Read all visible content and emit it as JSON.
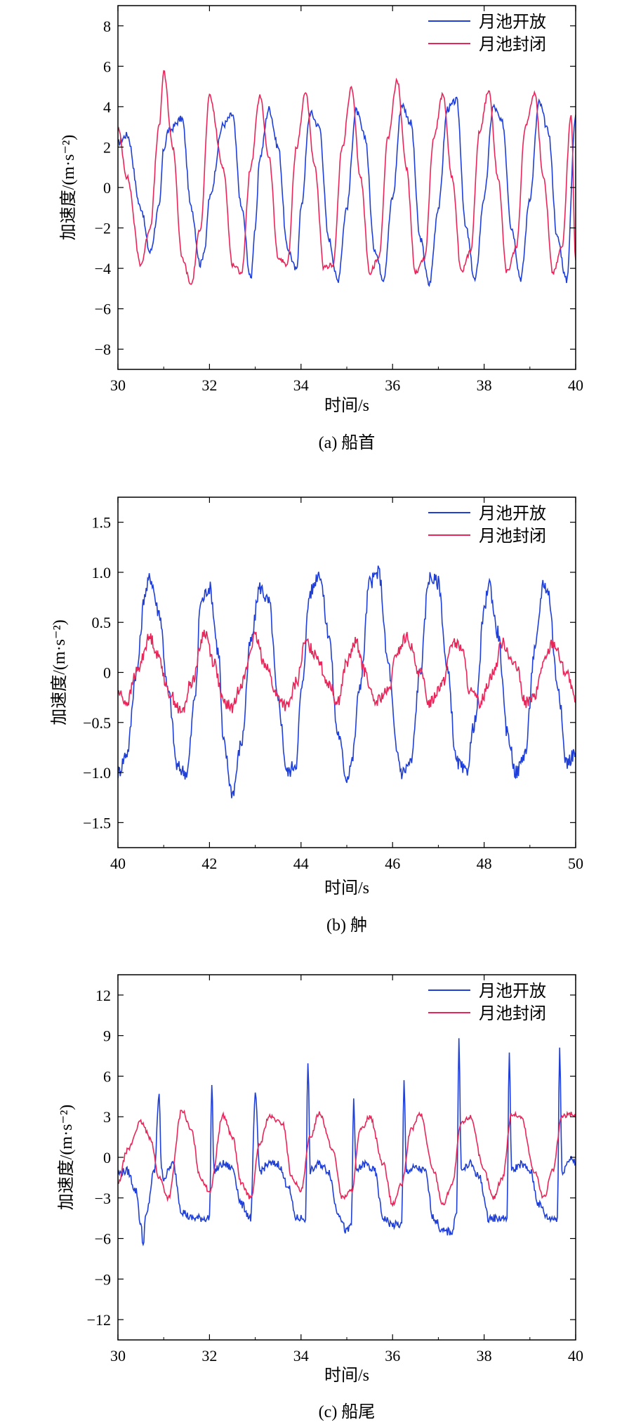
{
  "chart_data": [
    {
      "type": "line",
      "caption": "(a) 船首",
      "xlabel": "时间/s",
      "ylabel": "加速度/(m·s⁻²)",
      "xlim": [
        30,
        40
      ],
      "ylim": [
        -9,
        9
      ],
      "xticks": [
        30,
        32,
        34,
        36,
        38,
        40
      ],
      "yticks": [
        -8,
        -6,
        -4,
        -2,
        0,
        2,
        4,
        6,
        8
      ],
      "ytick_labels": [
        "−8",
        "−6",
        "−4",
        "−2",
        "0",
        "2",
        "4",
        "6",
        "8"
      ],
      "legend_position": "top-right",
      "grid": false,
      "series": [
        {
          "name": "月池开放",
          "color": "#1f3fd6",
          "x": [
            30.0,
            30.2,
            30.5,
            30.7,
            30.9,
            31.0,
            31.1,
            31.4,
            31.6,
            31.8,
            31.9,
            32.0,
            32.3,
            32.5,
            32.7,
            32.9,
            33.0,
            33.1,
            33.3,
            33.5,
            33.7,
            33.9,
            34.0,
            34.2,
            34.4,
            34.6,
            34.8,
            35.0,
            35.2,
            35.4,
            35.6,
            35.8,
            36.0,
            36.2,
            36.4,
            36.6,
            36.8,
            37.0,
            37.2,
            37.4,
            37.6,
            37.8,
            38.0,
            38.2,
            38.4,
            38.6,
            38.8,
            39.0,
            39.2,
            39.4,
            39.6,
            39.8,
            40.0
          ],
          "values": [
            2.2,
            2.6,
            -1.0,
            -3.2,
            -1.0,
            1.9,
            2.8,
            3.4,
            -1.0,
            -3.8,
            -3.0,
            -0.5,
            3.1,
            3.6,
            -1.0,
            -4.5,
            -2.0,
            1.5,
            3.9,
            2.0,
            -3.0,
            -4.1,
            -1.0,
            3.7,
            3.0,
            -2.5,
            -4.6,
            -1.0,
            3.8,
            2.5,
            -3.0,
            -4.5,
            -0.5,
            4.1,
            3.2,
            -2.5,
            -4.8,
            -1.0,
            3.9,
            4.3,
            -2.0,
            -4.6,
            -0.5,
            4.0,
            3.2,
            -2.0,
            -4.5,
            -0.5,
            4.2,
            2.8,
            -2.5,
            -4.6,
            3.6
          ]
        },
        {
          "name": "月池封闭",
          "color": "#e8265a",
          "x": [
            30.0,
            30.2,
            30.5,
            30.7,
            30.9,
            31.0,
            31.2,
            31.4,
            31.6,
            31.8,
            32.0,
            32.3,
            32.5,
            32.7,
            32.9,
            33.1,
            33.3,
            33.5,
            33.7,
            33.9,
            34.1,
            34.3,
            34.5,
            34.7,
            34.9,
            35.1,
            35.3,
            35.5,
            35.7,
            35.9,
            36.1,
            36.3,
            36.5,
            36.7,
            36.9,
            37.1,
            37.3,
            37.5,
            37.7,
            37.9,
            38.1,
            38.3,
            38.5,
            38.7,
            38.9,
            39.1,
            39.3,
            39.5,
            39.7,
            39.9,
            40.0
          ],
          "values": [
            2.9,
            0.5,
            -3.8,
            -2.0,
            3.0,
            5.7,
            2.0,
            -3.5,
            -4.8,
            -2.0,
            4.5,
            1.0,
            -3.8,
            -4.2,
            1.0,
            4.5,
            1.5,
            -3.5,
            -3.8,
            2.0,
            4.7,
            1.0,
            -4.0,
            -3.8,
            2.0,
            4.9,
            0.5,
            -4.2,
            -3.5,
            2.5,
            5.3,
            1.0,
            -4.2,
            -3.5,
            2.5,
            4.6,
            0.5,
            -4.2,
            -3.2,
            2.8,
            4.8,
            0.5,
            -4.2,
            -3.0,
            3.0,
            4.7,
            0.5,
            -4.2,
            -3.0,
            3.5,
            -3.6
          ]
        }
      ]
    },
    {
      "type": "line",
      "caption": "(b) 舯",
      "xlabel": "时间/s",
      "ylabel": "加速度/(m·s⁻²)",
      "xlim": [
        40,
        50
      ],
      "ylim": [
        -1.75,
        1.75
      ],
      "xticks": [
        40,
        42,
        44,
        46,
        48,
        50
      ],
      "yticks": [
        -1.5,
        -1.0,
        -0.5,
        0,
        0.5,
        1.0,
        1.5
      ],
      "ytick_labels": [
        "−1.5",
        "−1.0",
        "−0.5",
        "0",
        "0.5",
        "1.0",
        "1.5"
      ],
      "legend_position": "top-right",
      "grid": false,
      "series": [
        {
          "name": "月池开放",
          "color": "#1f3fd6",
          "x": [
            40.0,
            40.2,
            40.4,
            40.6,
            40.7,
            40.9,
            41.1,
            41.3,
            41.5,
            41.7,
            41.8,
            42.0,
            42.2,
            42.3,
            42.5,
            42.7,
            42.9,
            43.1,
            43.3,
            43.5,
            43.7,
            43.9,
            44.0,
            44.2,
            44.4,
            44.6,
            44.8,
            45.0,
            45.1,
            45.3,
            45.5,
            45.7,
            45.9,
            46.1,
            46.2,
            46.4,
            46.6,
            46.8,
            47.0,
            47.2,
            47.4,
            47.6,
            47.8,
            48.0,
            48.1,
            48.3,
            48.5,
            48.7,
            48.9,
            49.1,
            49.3,
            49.4,
            49.6,
            49.8,
            50.0
          ],
          "values": [
            -1.0,
            -0.8,
            0.0,
            0.8,
            0.95,
            0.6,
            -0.2,
            -0.95,
            -1.0,
            -0.2,
            0.7,
            0.85,
            0.2,
            -0.7,
            -1.2,
            -0.7,
            0.3,
            0.85,
            0.7,
            -0.3,
            -1.0,
            -0.9,
            -0.2,
            0.8,
            1.0,
            0.4,
            -0.6,
            -1.05,
            -0.9,
            -0.1,
            0.9,
            1.0,
            0.1,
            -0.8,
            -1.0,
            -0.9,
            0.0,
            0.95,
            0.9,
            0.0,
            -0.9,
            -1.0,
            -0.5,
            0.6,
            0.9,
            0.4,
            -0.6,
            -1.0,
            -0.8,
            0.2,
            0.9,
            0.8,
            -0.1,
            -0.9,
            -0.8
          ]
        },
        {
          "name": "月池封闭",
          "color": "#e8265a",
          "x": [
            40.0,
            40.2,
            40.4,
            40.7,
            40.9,
            41.1,
            41.4,
            41.6,
            41.9,
            42.1,
            42.3,
            42.5,
            42.7,
            43.0,
            43.2,
            43.5,
            43.7,
            43.9,
            44.1,
            44.3,
            44.6,
            44.8,
            45.0,
            45.2,
            45.4,
            45.6,
            45.9,
            46.1,
            46.3,
            46.6,
            46.8,
            47.1,
            47.3,
            47.5,
            47.7,
            47.9,
            48.2,
            48.4,
            48.7,
            48.9,
            49.1,
            49.3,
            49.5,
            49.8,
            50.0
          ],
          "values": [
            -0.2,
            -0.3,
            0.0,
            0.35,
            0.15,
            -0.2,
            -0.4,
            -0.1,
            0.4,
            0.1,
            -0.3,
            -0.35,
            -0.1,
            0.35,
            0.1,
            -0.25,
            -0.35,
            -0.1,
            0.3,
            0.2,
            -0.1,
            -0.3,
            0.1,
            0.3,
            0.0,
            -0.3,
            -0.2,
            0.2,
            0.35,
            0.0,
            -0.3,
            -0.1,
            0.3,
            0.25,
            -0.2,
            -0.3,
            0.0,
            0.3,
            0.05,
            -0.3,
            -0.25,
            0.1,
            0.3,
            0.0,
            -0.3
          ]
        }
      ]
    },
    {
      "type": "line",
      "caption": "(c) 船尾",
      "xlabel": "时间/s",
      "ylabel": "加速度/(m·s⁻²)",
      "xlim": [
        30,
        40
      ],
      "ylim": [
        -13.5,
        13.5
      ],
      "xticks": [
        30,
        32,
        34,
        36,
        38,
        40
      ],
      "yticks": [
        -12,
        -9,
        -6,
        -3,
        0,
        3,
        6,
        9,
        12
      ],
      "ytick_labels": [
        "−12",
        "−9",
        "−6",
        "−3",
        "0",
        "3",
        "6",
        "9",
        "12"
      ],
      "legend_position": "top-right",
      "grid": false,
      "series": [
        {
          "name": "月池开放",
          "color": "#1f3fd6",
          "x": [
            30.0,
            30.2,
            30.4,
            30.5,
            30.55,
            30.6,
            30.8,
            30.9,
            30.95,
            31.0,
            31.2,
            31.4,
            31.6,
            31.8,
            32.0,
            32.05,
            32.1,
            32.3,
            32.5,
            32.7,
            32.9,
            33.0,
            33.1,
            33.3,
            33.5,
            33.7,
            33.9,
            34.1,
            34.15,
            34.2,
            34.4,
            34.6,
            34.8,
            35.0,
            35.1,
            35.15,
            35.2,
            35.4,
            35.6,
            35.8,
            36.0,
            36.2,
            36.25,
            36.3,
            36.5,
            36.7,
            36.9,
            37.1,
            37.3,
            37.4,
            37.45,
            37.5,
            37.7,
            37.9,
            38.1,
            38.3,
            38.5,
            38.55,
            38.6,
            38.8,
            39.0,
            39.2,
            39.4,
            39.6,
            39.65,
            39.7,
            39.9,
            40.0
          ],
          "values": [
            -1.2,
            -1.0,
            -2.5,
            -5.0,
            -6.5,
            -4.5,
            -1.0,
            4.8,
            -1.0,
            -1.5,
            -0.5,
            -4.0,
            -4.5,
            -4.5,
            -4.5,
            5.4,
            -1.0,
            -0.5,
            -0.8,
            -3.5,
            -4.5,
            4.5,
            -1.0,
            -0.5,
            -0.5,
            -2.0,
            -4.5,
            -4.5,
            7.2,
            -1.0,
            -0.5,
            -1.0,
            -4.0,
            -5.5,
            -5.0,
            4.4,
            -1.0,
            -0.5,
            -1.0,
            -4.5,
            -5.0,
            -5.0,
            5.6,
            -1.0,
            -0.8,
            -1.0,
            -4.5,
            -5.5,
            -5.5,
            -4.0,
            9.0,
            -1.0,
            -0.5,
            -1.5,
            -4.5,
            -4.5,
            -4.5,
            8.0,
            -1.0,
            -0.5,
            -1.0,
            -3.5,
            -4.5,
            -4.5,
            8.1,
            -1.0,
            0.0,
            -0.5
          ]
        },
        {
          "name": "月池封闭",
          "color": "#e8265a",
          "x": [
            30.0,
            30.2,
            30.5,
            30.7,
            30.9,
            31.1,
            31.4,
            31.6,
            31.8,
            32.0,
            32.3,
            32.5,
            32.7,
            32.9,
            33.1,
            33.3,
            33.6,
            33.8,
            34.0,
            34.2,
            34.4,
            34.7,
            34.9,
            35.1,
            35.3,
            35.5,
            35.8,
            36.0,
            36.2,
            36.4,
            36.6,
            36.9,
            37.1,
            37.3,
            37.5,
            37.7,
            38.0,
            38.2,
            38.4,
            38.6,
            38.8,
            39.1,
            39.3,
            39.5,
            39.7,
            39.9,
            40.0
          ],
          "values": [
            -2.0,
            0.5,
            2.6,
            1.5,
            -1.5,
            -3.0,
            3.5,
            2.0,
            -1.5,
            -2.5,
            3.1,
            1.5,
            -2.0,
            -3.0,
            1.0,
            3.0,
            2.5,
            -1.5,
            -2.5,
            1.5,
            3.3,
            0.5,
            -3.0,
            -2.5,
            2.0,
            3.0,
            -0.5,
            -3.5,
            -2.0,
            2.0,
            3.2,
            -1.0,
            -3.5,
            -2.0,
            2.5,
            3.0,
            -1.0,
            -3.0,
            -1.5,
            3.2,
            3.0,
            -1.0,
            -3.0,
            -1.0,
            3.0,
            3.2,
            3.1
          ]
        }
      ]
    }
  ]
}
